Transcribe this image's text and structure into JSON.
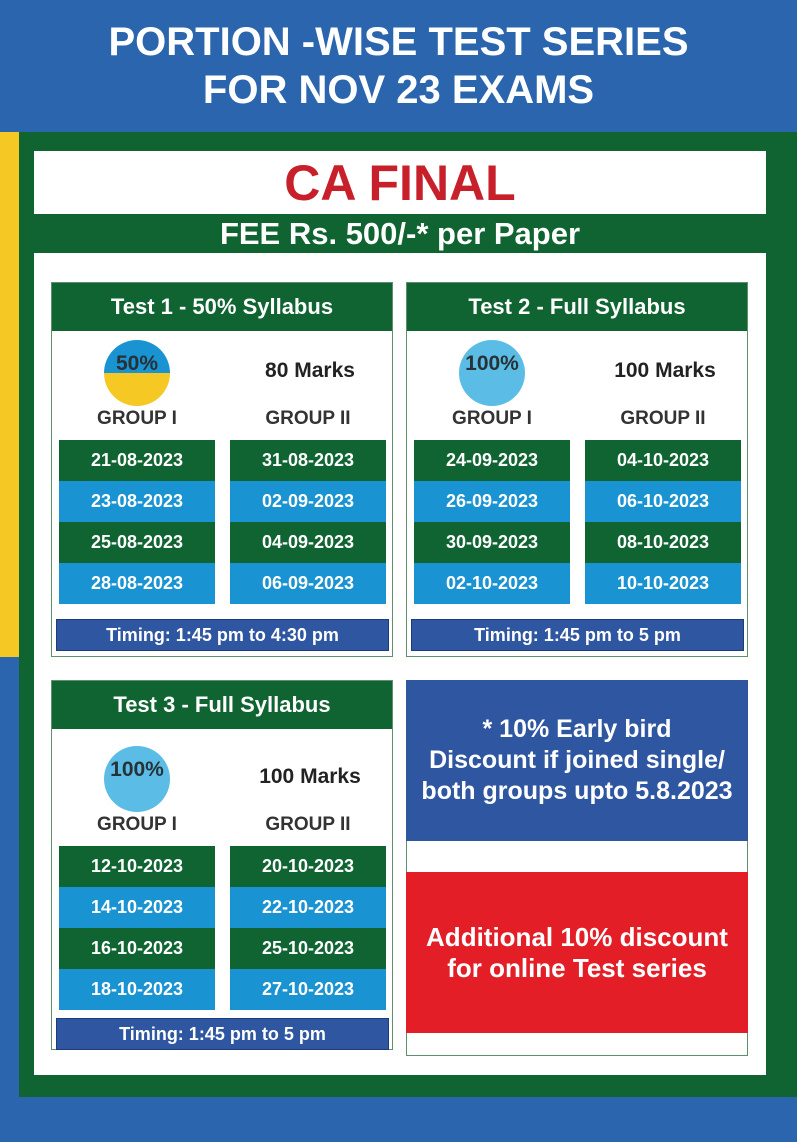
{
  "header": {
    "line1": "PORTION -WISE TEST SERIES",
    "line2": "FOR NOV 23 EXAMS"
  },
  "title": "CA FINAL",
  "fee": "FEE Rs. 500/-* per Paper",
  "colors": {
    "green": "#106432",
    "light_blue": "#1a93d2",
    "blue": "#2f56a0",
    "red": "#e31e26",
    "yellow": "#f6c823",
    "title_red": "#c8202b"
  },
  "tests": [
    {
      "title": "Test 1 - 50% Syllabus",
      "badge": "50%",
      "syllabus_percent": 50,
      "marks": "80 Marks",
      "group1_label": "GROUP I",
      "group2_label": "GROUP II",
      "group1_dates": [
        "21-08-2023",
        "23-08-2023",
        "25-08-2023",
        "28-08-2023"
      ],
      "group2_dates": [
        "31-08-2023",
        "02-09-2023",
        "04-09-2023",
        "06-09-2023"
      ],
      "timing": "Timing: 1:45 pm to 4:30 pm"
    },
    {
      "title": "Test 2 - Full Syllabus",
      "badge": "100%",
      "syllabus_percent": 100,
      "marks": "100 Marks",
      "group1_label": "GROUP I",
      "group2_label": "GROUP II",
      "group1_dates": [
        "24-09-2023",
        "26-09-2023",
        "30-09-2023",
        "02-10-2023"
      ],
      "group2_dates": [
        "04-10-2023",
        "06-10-2023",
        "08-10-2023",
        "10-10-2023"
      ],
      "timing": "Timing: 1:45 pm to 5 pm"
    },
    {
      "title": "Test 3 - Full Syllabus",
      "badge": "100%",
      "syllabus_percent": 100,
      "marks": "100 Marks",
      "group1_label": "GROUP I",
      "group2_label": "GROUP II",
      "group1_dates": [
        "12-10-2023",
        "14-10-2023",
        "16-10-2023",
        "18-10-2023"
      ],
      "group2_dates": [
        "20-10-2023",
        "22-10-2023",
        "25-10-2023",
        "27-10-2023"
      ],
      "timing": "Timing: 1:45 pm to 5 pm"
    }
  ],
  "promo": {
    "early_bird": [
      "* 10% Early bird",
      "Discount if joined single/",
      "both groups upto 5.8.2023"
    ],
    "online": [
      "Additional 10% discount",
      "for online Test series"
    ]
  }
}
